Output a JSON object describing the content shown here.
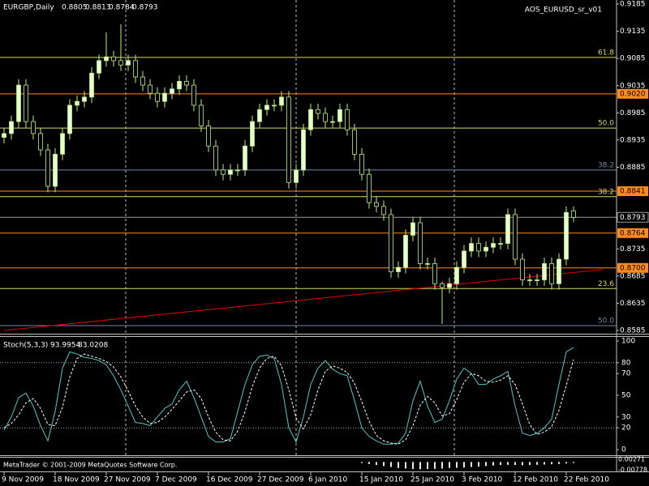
{
  "chart_data": [
    {
      "type": "candlestick",
      "symbol": "EURGBP,Daily",
      "indicator_name": "AOS_EURUSD_sr_v01",
      "open": [
        0.894,
        0.8947,
        0.8969,
        0.9036,
        0.8969,
        0.8947,
        0.8917,
        0.885,
        0.8909,
        0.8947,
        0.8999,
        0.9006,
        0.9014,
        0.9058,
        0.9081,
        0.9088,
        0.9081,
        0.9073,
        0.9081,
        0.9051,
        0.9036,
        0.9021,
        0.9006,
        0.9021,
        0.9029,
        0.9043,
        0.9036,
        0.8999,
        0.8961,
        0.8924,
        0.888,
        0.8872,
        0.888,
        0.888,
        0.8924,
        0.8969,
        0.8991,
        0.8999,
        0.8999,
        0.9014,
        0.8857,
        0.888,
        0.8954,
        0.8991,
        0.8984,
        0.8969,
        0.8969,
        0.8991,
        0.8954,
        0.8909,
        0.8872,
        0.882,
        0.8813,
        0.8798,
        0.8693,
        0.8701,
        0.876,
        0.8783,
        0.8708,
        0.8708,
        0.8671,
        0.8664,
        0.8671,
        0.8701,
        0.8731,
        0.8745,
        0.8731,
        0.8738,
        0.8745,
        0.8745,
        0.8798,
        0.8716,
        0.8678,
        0.8678,
        0.8678,
        0.8708,
        0.8671,
        0.8716,
        0.8805
      ],
      "high": [
        0.8958,
        0.898,
        0.9047,
        0.9047,
        0.898,
        0.8958,
        0.8928,
        0.892,
        0.8958,
        0.901,
        0.9017,
        0.9025,
        0.9069,
        0.9092,
        0.9133,
        0.9099,
        0.9148,
        0.9092,
        0.9092,
        0.9062,
        0.9047,
        0.9032,
        0.9032,
        0.904,
        0.9054,
        0.9054,
        0.9047,
        0.901,
        0.8972,
        0.8935,
        0.8891,
        0.8891,
        0.8891,
        0.8935,
        0.898,
        0.9002,
        0.901,
        0.901,
        0.9025,
        0.9025,
        0.8891,
        0.8965,
        0.9002,
        0.9002,
        0.8995,
        0.898,
        0.9002,
        0.9002,
        0.8965,
        0.892,
        0.8883,
        0.8831,
        0.8824,
        0.8809,
        0.8712,
        0.8771,
        0.8794,
        0.8794,
        0.8719,
        0.8719,
        0.8675,
        0.8682,
        0.8712,
        0.8742,
        0.8756,
        0.8756,
        0.8749,
        0.8756,
        0.8756,
        0.8809,
        0.8809,
        0.8727,
        0.8689,
        0.8689,
        0.8719,
        0.8719,
        0.8727,
        0.8813,
        0.8813
      ],
      "low": [
        0.8929,
        0.8936,
        0.8958,
        0.8958,
        0.8936,
        0.8906,
        0.8839,
        0.8839,
        0.8898,
        0.8936,
        0.8988,
        0.8995,
        0.9003,
        0.9047,
        0.907,
        0.907,
        0.9062,
        0.9062,
        0.904,
        0.9025,
        0.901,
        0.8995,
        0.8995,
        0.901,
        0.9018,
        0.9025,
        0.8988,
        0.895,
        0.8913,
        0.8869,
        0.8861,
        0.8861,
        0.8869,
        0.8869,
        0.8913,
        0.8958,
        0.898,
        0.8988,
        0.8988,
        0.8846,
        0.8846,
        0.8869,
        0.8943,
        0.8973,
        0.8958,
        0.8958,
        0.8958,
        0.8943,
        0.8898,
        0.8861,
        0.8809,
        0.8802,
        0.8787,
        0.8682,
        0.8682,
        0.869,
        0.8749,
        0.8697,
        0.8697,
        0.866,
        0.8597,
        0.8653,
        0.866,
        0.869,
        0.872,
        0.872,
        0.872,
        0.8727,
        0.8734,
        0.8734,
        0.8705,
        0.8667,
        0.8667,
        0.8667,
        0.8667,
        0.866,
        0.866,
        0.8705,
        0.8784
      ],
      "close": [
        0.8947,
        0.8969,
        0.9036,
        0.8969,
        0.8947,
        0.8917,
        0.885,
        0.8909,
        0.8947,
        0.8999,
        0.9006,
        0.9014,
        0.9058,
        0.9081,
        0.9088,
        0.9081,
        0.9073,
        0.9081,
        0.9051,
        0.9036,
        0.9021,
        0.9006,
        0.9021,
        0.9029,
        0.9043,
        0.9036,
        0.8999,
        0.8961,
        0.8924,
        0.888,
        0.8872,
        0.888,
        0.888,
        0.8924,
        0.8969,
        0.8991,
        0.8999,
        0.8999,
        0.9014,
        0.8857,
        0.888,
        0.8954,
        0.8991,
        0.8984,
        0.8969,
        0.8969,
        0.8991,
        0.8954,
        0.8909,
        0.8872,
        0.882,
        0.8813,
        0.8798,
        0.8693,
        0.8701,
        0.876,
        0.8783,
        0.8708,
        0.8708,
        0.8671,
        0.8664,
        0.8671,
        0.8701,
        0.8731,
        0.8745,
        0.8731,
        0.8738,
        0.8745,
        0.8745,
        0.8798,
        0.8716,
        0.8678,
        0.8678,
        0.8678,
        0.8708,
        0.8671,
        0.8716,
        0.8802,
        0.8793
      ],
      "up_color": "#e8ffd0",
      "down_color": "#000000",
      "wick_color": "#b8f080",
      "ylim": [
        0.8585,
        0.9185
      ],
      "yticks": [
        0.9185,
        0.9135,
        0.9085,
        0.9035,
        0.8985,
        0.8935,
        0.8885,
        0.8735,
        0.8685,
        0.8635,
        0.8585
      ],
      "xticks": [
        {
          "value": 0,
          "label": "9 Nov 2009"
        },
        {
          "value": 7,
          "label": "18 Nov 2009"
        },
        {
          "value": 14,
          "label": "27 Nov 2009"
        },
        {
          "value": 21,
          "label": "7 Dec 2009"
        },
        {
          "value": 28,
          "label": "16 Dec 2009"
        },
        {
          "value": 35,
          "label": "27 Dec 2009"
        },
        {
          "value": 42,
          "label": "6 Jan 2010"
        },
        {
          "value": 49,
          "label": "15 Jan 2010"
        },
        {
          "value": 56,
          "label": "25 Jan 2010"
        },
        {
          "value": 63,
          "label": "3 Feb 2010"
        },
        {
          "value": 70,
          "label": "12 Feb 2010"
        },
        {
          "value": 77,
          "label": "22 Feb 2010"
        }
      ],
      "levels": [
        {
          "price": 0.9087,
          "text": "61.8",
          "color": "#d8d860"
        },
        {
          "price": 0.902,
          "price_label": "0.9020",
          "color": "#ff8c1a"
        },
        {
          "price": 0.8957,
          "text": "50.0",
          "color": "#d8d860"
        },
        {
          "price": 0.888,
          "text": "38.2",
          "color": "#7088a8"
        },
        {
          "price": 0.8841,
          "price_label": "0.8841",
          "color": "#ff8c1a"
        },
        {
          "price": 0.8831,
          "text": "38.2",
          "color": "#d8d860"
        },
        {
          "price": 0.8764,
          "price_label": "0.8764",
          "color": "#ff8c1a"
        },
        {
          "price": 0.87,
          "price_label": "0.8700",
          "color": "#ff8c1a"
        },
        {
          "price": 0.8662,
          "text": "23.6",
          "color": "#d8d860"
        },
        {
          "price": 0.8594,
          "text": "50.0",
          "color": "#7088a8"
        }
      ],
      "current_price_color": "#9a9a9a",
      "trendline": {
        "x": [
          0,
          82
        ],
        "y": [
          0.8585,
          0.8697
        ],
        "color": "#e00000"
      }
    },
    {
      "type": "line",
      "title": "Stoch(5,3,3)",
      "series": [
        {
          "color": "#50c8c8",
          "dashed": false,
          "values": [
            18,
            30,
            48,
            52,
            40,
            22,
            8,
            35,
            75,
            90,
            88,
            85,
            84,
            82,
            78,
            68,
            55,
            40,
            25,
            24,
            22,
            30,
            38,
            42,
            55,
            63,
            48,
            30,
            12,
            7,
            7,
            10,
            35,
            60,
            78,
            86,
            87,
            84,
            60,
            20,
            7,
            30,
            60,
            75,
            82,
            74,
            70,
            68,
            45,
            20,
            12,
            8,
            5,
            5,
            6,
            15,
            45,
            63,
            40,
            25,
            28,
            45,
            65,
            75,
            70,
            60,
            60,
            65,
            68,
            72,
            40,
            15,
            13,
            15,
            20,
            28,
            60,
            90,
            93.9954
          ]
        },
        {
          "color": "#ffffff",
          "dashed": true,
          "values": [
            20,
            24,
            32,
            43,
            47,
            38,
            23,
            22,
            39,
            67,
            84,
            88,
            86,
            84,
            81,
            76,
            67,
            54,
            40,
            30,
            24,
            25,
            30,
            37,
            45,
            53,
            55,
            47,
            30,
            16,
            9,
            8,
            17,
            35,
            58,
            75,
            84,
            86,
            77,
            55,
            29,
            19,
            32,
            55,
            72,
            77,
            75,
            71,
            61,
            44,
            26,
            13,
            8,
            6,
            5,
            9,
            22,
            41,
            49,
            43,
            31,
            33,
            46,
            62,
            70,
            68,
            63,
            62,
            64,
            68,
            60,
            42,
            23,
            14,
            16,
            21,
            36,
            59,
            83.0208
          ]
        }
      ],
      "ylim": [
        0,
        100
      ],
      "yticks": [
        100,
        80,
        70,
        50,
        30,
        20,
        0
      ],
      "dotted_levels": [
        80,
        20
      ]
    },
    {
      "type": "bar",
      "watermark": "MetaTrader © 2001-2009 MetaQuotes Software Corp.",
      "values": [
        null,
        null,
        null,
        null,
        null,
        null,
        null,
        null,
        null,
        null,
        null,
        null,
        null,
        null,
        null,
        null,
        null,
        null,
        null,
        null,
        null,
        null,
        null,
        null,
        null,
        null,
        null,
        null,
        null,
        null,
        null,
        null,
        null,
        null,
        null,
        null,
        null,
        null,
        null,
        null,
        null,
        null,
        null,
        null,
        null,
        null,
        null,
        null,
        null,
        -0.001,
        -0.002,
        -0.003,
        -0.004,
        -0.005,
        -0.006,
        -0.0065,
        -0.007,
        -0.0072,
        -0.007,
        -0.0068,
        -0.0065,
        -0.006,
        -0.0058,
        -0.0055,
        -0.005,
        -0.0045,
        -0.004,
        -0.0035,
        -0.003,
        -0.0028,
        -0.003,
        -0.0032,
        -0.003,
        -0.0028,
        -0.0025,
        -0.0022,
        -0.002,
        -0.0015,
        -0.001
      ],
      "color": "#e8e8e8",
      "ylim": [
        -0.00778,
        0.00271
      ],
      "yticks": [
        0.00271,
        -0.00778
      ]
    }
  ]
}
